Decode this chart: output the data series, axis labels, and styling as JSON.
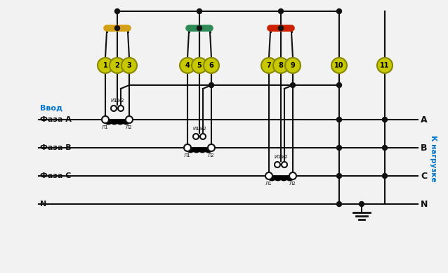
{
  "bg_color": "#f2f2f2",
  "vvod_label": "Ввод",
  "nagruzka_label": "К нагрузке",
  "phase_labels": [
    "Фаза A",
    "Фаза B",
    "Фаза C",
    "N"
  ],
  "right_labels": [
    "A",
    "B",
    "C",
    "N"
  ],
  "busbar_colors": [
    "#d4a017",
    "#2e8b57",
    "#cc2200"
  ],
  "line_color": "#111111",
  "terminal_color": "#c8c800",
  "terminal_border": "#888800"
}
